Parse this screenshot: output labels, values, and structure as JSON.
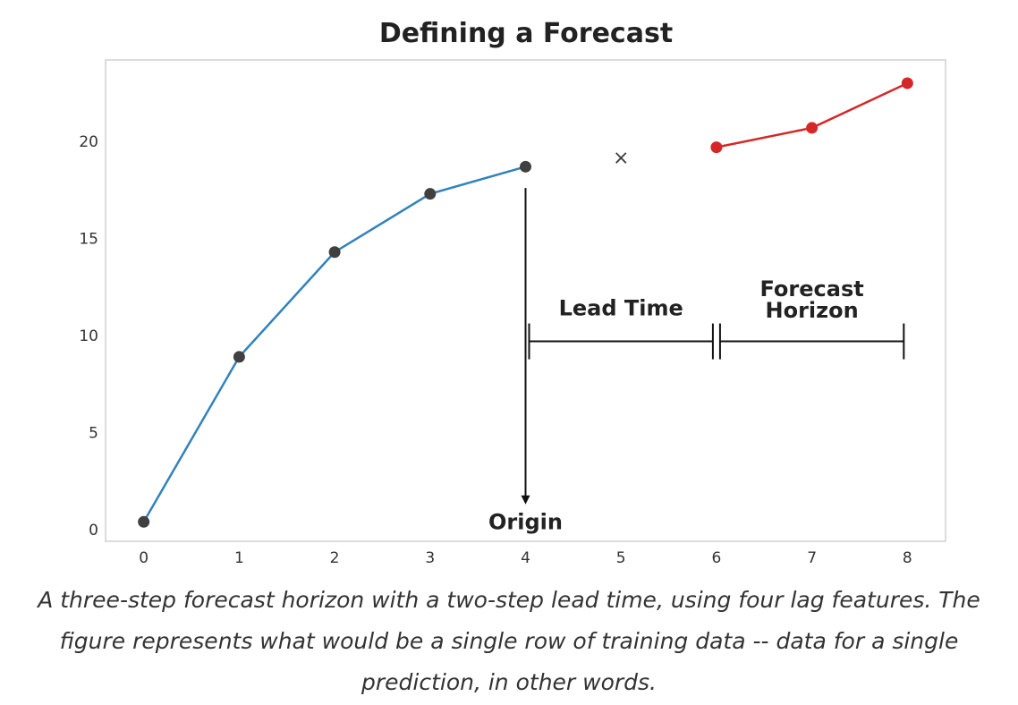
{
  "chart_data": {
    "type": "line",
    "title": "Defining a Forecast",
    "xlabel": "",
    "ylabel": "",
    "xlim": [
      -0.4,
      8.4
    ],
    "ylim": [
      -0.6,
      24.2
    ],
    "xticks": [
      0,
      1,
      2,
      3,
      4,
      5,
      6,
      7,
      8
    ],
    "yticks": [
      0,
      5,
      10,
      15,
      20
    ],
    "grid": false,
    "legend": "none",
    "series": [
      {
        "color": "#3182bd",
        "marker_color": "#404040",
        "x": [
          0,
          1,
          2,
          3,
          4
        ],
        "y": [
          0.4,
          8.9,
          14.3,
          17.3,
          18.7
        ]
      },
      {
        "color": "#d62728",
        "marker_color": "#d62728",
        "x": [
          6,
          7,
          8
        ],
        "y": [
          19.7,
          20.7,
          23.0
        ]
      }
    ],
    "excluded_point": {
      "marker": "×",
      "x": 5,
      "y": 19.2,
      "color": "#404040"
    },
    "annotations": {
      "origin": {
        "text": "Origin",
        "x": 4,
        "arrow_from_y": 17.6,
        "arrow_to_y": 1.3,
        "label_y": 0.4
      },
      "lead_time": {
        "text": "Lead Time",
        "x_start": 4,
        "x_end": 6,
        "y": 9.7,
        "label_y": 11.4
      },
      "forecast_horizon": {
        "lines": [
          "Forecast",
          "Horizon"
        ],
        "x_start": 6,
        "x_end": 8,
        "y": 9.7,
        "label_y": [
          12.4,
          11.3
        ]
      }
    }
  },
  "caption": "A three-step forecast horizon with a two-step lead time, using four lag features. The figure represents what would be a single row of training data -- data for a single prediction, in other words."
}
